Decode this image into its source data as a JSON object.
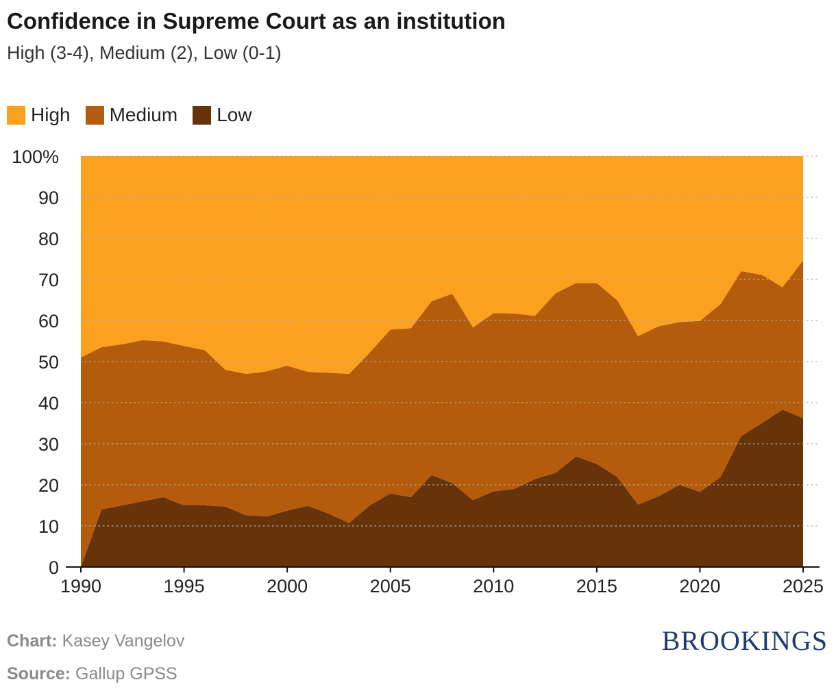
{
  "chart_data": {
    "type": "area",
    "stacked": true,
    "title": "Confidence in Supreme Court as an institution",
    "subtitle": "High (3-4), Medium (2), Low (0-1)",
    "x": [
      1990,
      1991,
      1992,
      1993,
      1994,
      1995,
      1996,
      1997,
      1998,
      1999,
      2000,
      2001,
      2002,
      2003,
      2004,
      2005,
      2006,
      2007,
      2008,
      2009,
      2010,
      2011,
      2012,
      2013,
      2014,
      2015,
      2016,
      2017,
      2018,
      2019,
      2020,
      2021,
      2022,
      2023,
      2024,
      2025
    ],
    "series": [
      {
        "name": "Low",
        "color": "#66330a",
        "values": [
          0,
          14,
          15,
          16,
          17,
          15,
          15,
          14.7,
          12.6,
          12.3,
          13.7,
          14.9,
          13,
          10.7,
          15,
          17.9,
          17,
          22.4,
          20.4,
          16.3,
          18.4,
          19,
          21.4,
          22.9,
          26.9,
          25.1,
          21.9,
          15.2,
          17.2,
          20,
          18.3,
          21.9,
          31.9,
          35,
          38.3,
          36.2
        ]
      },
      {
        "name": "Medium",
        "color": "#b55c0c",
        "values": [
          51,
          39.5,
          39.2,
          39.2,
          37.9,
          38.8,
          37.8,
          33.3,
          34.4,
          35.3,
          35.3,
          32.6,
          34.3,
          36.3,
          37.2,
          39.9,
          41.1,
          42.3,
          46.1,
          42,
          43.4,
          42.7,
          39.7,
          43.7,
          42.2,
          44,
          43,
          41,
          41.4,
          39.6,
          41.6,
          42.1,
          40.1,
          36.1,
          29.8,
          38.4
        ]
      },
      {
        "name": "High",
        "color": "#fca020",
        "values": [
          49,
          46.5,
          45.8,
          44.8,
          45.1,
          46.2,
          47.2,
          52,
          53,
          52.4,
          51,
          52.5,
          52.7,
          53,
          47.8,
          42.2,
          41.9,
          35.3,
          33.5,
          41.7,
          38.2,
          38.3,
          38.9,
          33.4,
          30.9,
          30.9,
          35.1,
          43.8,
          41.4,
          40.4,
          40.1,
          36,
          28,
          28.9,
          31.9,
          25.4
        ]
      }
    ],
    "xlim": [
      1990,
      2025
    ],
    "ylim": [
      0,
      100
    ],
    "x_ticks": [
      "1990",
      "1995",
      "2000",
      "2005",
      "2010",
      "2015",
      "2020",
      "2025"
    ],
    "y_ticks": [
      "0",
      "10",
      "20",
      "30",
      "40",
      "50",
      "60",
      "70",
      "80",
      "90",
      "100%"
    ],
    "grid": "horizontal dotted",
    "legend_position": "top-left"
  },
  "footer": {
    "chart_label": "Chart:",
    "chart_value": "Kasey Vangelov",
    "source_label": "Source:",
    "source_value": "Gallup GPSS",
    "brand": "BROOKINGS"
  }
}
